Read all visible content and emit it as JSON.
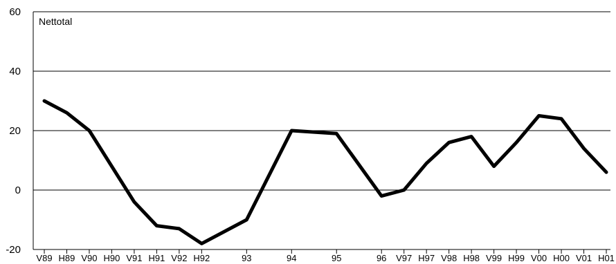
{
  "chart_data": {
    "type": "line",
    "categories": [
      "V89",
      "H89",
      "V90",
      "H90",
      "V91",
      "H91",
      "V92",
      "H92",
      "93",
      "94",
      "95",
      "96",
      "V97",
      "H97",
      "V98",
      "H98",
      "V99",
      "H99",
      "V00",
      "H00",
      "V01",
      "H01"
    ],
    "x_positions": [
      0,
      1,
      2,
      3,
      4,
      5,
      6,
      7,
      9,
      11,
      13,
      15,
      16,
      17,
      18,
      19,
      20,
      21,
      22,
      23,
      24,
      25
    ],
    "series": [
      {
        "name": "Nettotal",
        "values": [
          30,
          26,
          20,
          8,
          -4,
          -12,
          -13,
          -18,
          -10,
          20,
          19,
          -2,
          0,
          9,
          16,
          18,
          8,
          16,
          25,
          24,
          14,
          6
        ]
      }
    ],
    "yticks": [
      60,
      40,
      20,
      0,
      -20
    ],
    "ylim": [
      -20,
      60
    ],
    "grid": true,
    "line_color": "#000000"
  }
}
